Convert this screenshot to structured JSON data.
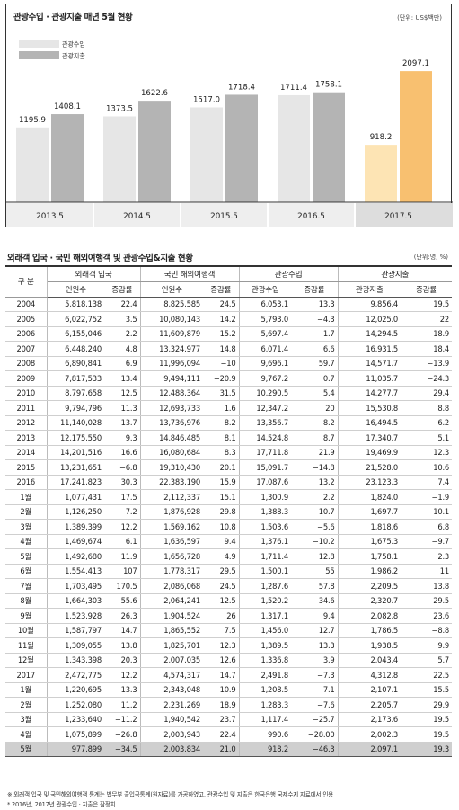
{
  "chart_data": {
    "type": "bar",
    "title": "관광수입 · 관광지출 매년 5월 현황",
    "unit": "(단위: US$백만)",
    "categories": [
      "2013.5",
      "2014.5",
      "2015.5",
      "2016.5",
      "2017.5"
    ],
    "series": [
      {
        "name": "관광수입",
        "values": [
          1195.9,
          1373.5,
          1517.0,
          1711.4,
          918.2
        ],
        "value_labels": [
          "1195.9",
          "1373.5",
          "1517.0",
          "1711.4",
          "918.2"
        ],
        "color": "#e6e6e6",
        "highlight_color": "#fde4b4"
      },
      {
        "name": "관광지출",
        "values": [
          1408.1,
          1622.6,
          1718.4,
          1758.1,
          2097.1
        ],
        "value_labels": [
          "1408.1",
          "1622.6",
          "1718.4",
          "1758.1",
          "2097.1"
        ],
        "color": "#b4b4b4",
        "highlight_color": "#f8c070"
      }
    ],
    "ylim": [
      0,
      2300
    ],
    "highlight_category": "2017.5",
    "legend": "top-left",
    "grid": false
  },
  "table": {
    "title": "외래객 입국 · 국민 해외여행객 및 관광수입&지출 현황",
    "unit": "(단위:명, %)",
    "headers": {
      "gubun": "구 분",
      "groups": [
        "외래객 입국",
        "국민 해외여행객",
        "관광수입",
        "관광지출"
      ],
      "sub": [
        "인원수",
        "증감률",
        "인원수",
        "증감률",
        "관광수입",
        "증감률",
        "관광지출",
        "증감률"
      ]
    },
    "rows": [
      [
        "2004",
        "5,818,138",
        "22.4",
        "8,825,585",
        "24.5",
        "6,053.1",
        "13.3",
        "9,856.4",
        "19.5"
      ],
      [
        "2005",
        "6,022,752",
        "3.5",
        "10,080,143",
        "14.2",
        "5,793.0",
        "−4.3",
        "12,025.0",
        "22"
      ],
      [
        "2006",
        "6,155,046",
        "2.2",
        "11,609,879",
        "15.2",
        "5,697.4",
        "−1.7",
        "14,294.5",
        "18.9"
      ],
      [
        "2007",
        "6,448,240",
        "4.8",
        "13,324,977",
        "14.8",
        "6,071.4",
        "6.6",
        "16,931.5",
        "18.4"
      ],
      [
        "2008",
        "6,890,841",
        "6.9",
        "11,996,094",
        "−10",
        "9,696.1",
        "59.7",
        "14,571.7",
        "−13.9"
      ],
      [
        "2009",
        "7,817,533",
        "13.4",
        "9,494,111",
        "−20.9",
        "9,767.2",
        "0.7",
        "11,035.7",
        "−24.3"
      ],
      [
        "2010",
        "8,797,658",
        "12.5",
        "12,488,364",
        "31.5",
        "10,290.5",
        "5.4",
        "14,277.7",
        "29.4"
      ],
      [
        "2011",
        "9,794,796",
        "11.3",
        "12,693,733",
        "1.6",
        "12,347.2",
        "20",
        "15,530.8",
        "8.8"
      ],
      [
        "2012",
        "11,140,028",
        "13.7",
        "13,736,976",
        "8.2",
        "13,356.7",
        "8.2",
        "16,494.5",
        "6.2"
      ],
      [
        "2013",
        "12,175,550",
        "9.3",
        "14,846,485",
        "8.1",
        "14,524.8",
        "8.7",
        "17,340.7",
        "5.1"
      ],
      [
        "2014",
        "14,201,516",
        "16.6",
        "16,080,684",
        "8.3",
        "17,711.8",
        "21.9",
        "19,469.9",
        "12.3"
      ],
      [
        "2015",
        "13,231,651",
        "−6.8",
        "19,310,430",
        "20.1",
        "15,091.7",
        "−14.8",
        "21,528.0",
        "10.6"
      ],
      [
        "2016",
        "17,241,823",
        "30.3",
        "22,383,190",
        "15.9",
        "17,087.6",
        "13.2",
        "23,123.3",
        "7.4"
      ],
      [
        "1월",
        "1,077,431",
        "17.5",
        "2,112,337",
        "15.1",
        "1,300.9",
        "2.2",
        "1,824.0",
        "−1.9"
      ],
      [
        "2월",
        "1,126,250",
        "7.2",
        "1,876,928",
        "29.8",
        "1,388.3",
        "10.7",
        "1,697.7",
        "10.1"
      ],
      [
        "3월",
        "1,389,399",
        "12.2",
        "1,569,162",
        "10.8",
        "1,503.6",
        "−5.6",
        "1,818.6",
        "6.8"
      ],
      [
        "4월",
        "1,469,674",
        "6.1",
        "1,636,597",
        "9.4",
        "1,376.1",
        "−10.2",
        "1,675.3",
        "−9.7"
      ],
      [
        "5월",
        "1,492,680",
        "11.9",
        "1,656,728",
        "4.9",
        "1,711.4",
        "12.8",
        "1,758.1",
        "2.3"
      ],
      [
        "6월",
        "1,554,413",
        "107",
        "1,778,317",
        "29.5",
        "1,500.1",
        "55",
        "1,986.2",
        "11"
      ],
      [
        "7월",
        "1,703,495",
        "170.5",
        "2,086,068",
        "24.5",
        "1,287.6",
        "57.8",
        "2,209.5",
        "13.8"
      ],
      [
        "8월",
        "1,664,303",
        "55.6",
        "2,064,241",
        "12.5",
        "1,520.2",
        "34.6",
        "2,320.7",
        "29.5"
      ],
      [
        "9월",
        "1,523,928",
        "26.3",
        "1,904,524",
        "26",
        "1,317.1",
        "9.4",
        "2,082.8",
        "23.6"
      ],
      [
        "10월",
        "1,587,797",
        "14.7",
        "1,865,552",
        "7.5",
        "1,456.0",
        "12.7",
        "1,786.5",
        "−8.8"
      ],
      [
        "11월",
        "1,309,055",
        "13.8",
        "1,825,701",
        "12.3",
        "1,389.5",
        "13.3",
        "1,938.5",
        "9.9"
      ],
      [
        "12월",
        "1,343,398",
        "20.3",
        "2,007,035",
        "12.6",
        "1,336.8",
        "3.9",
        "2,043.4",
        "5.7"
      ],
      [
        "2017",
        "2,472,775",
        "12.2",
        "4,574,317",
        "14.7",
        "2,491.8",
        "−7.3",
        "4,312.8",
        "22.5"
      ],
      [
        "1월",
        "1,220,695",
        "13.3",
        "2,343,048",
        "10.9",
        "1,208.5",
        "−7.1",
        "2,107.1",
        "15.5"
      ],
      [
        "2월",
        "1,252,080",
        "11.2",
        "2,231,269",
        "18.9",
        "1,283.3",
        "−7.6",
        "2,205.7",
        "29.9"
      ],
      [
        "3월",
        "1,233,640",
        "−11.2",
        "1,940,542",
        "23.7",
        "1,117.4",
        "−25.7",
        "2,173.6",
        "19.5"
      ],
      [
        "4월",
        "1,075,899",
        "−26.8",
        "2,003,943",
        "22.4",
        "990.6",
        "−28.00",
        "2,002.3",
        "19.5"
      ],
      [
        "5월",
        "977,899",
        "−34.5",
        "2,003,834",
        "21.0",
        "918.2",
        "−46.3",
        "2,097.1",
        "19.3"
      ]
    ],
    "notes": [
      "※ 외래객 입국 및 국민해외여행객 통계는 법무부 출입국통계(원자료)를 가공하였고, 관광수입 및 지출은 한국은행 국제수지 자료에서 인용",
      "* 2016년, 2017년 관광수입 · 지출은 잠정치"
    ]
  }
}
